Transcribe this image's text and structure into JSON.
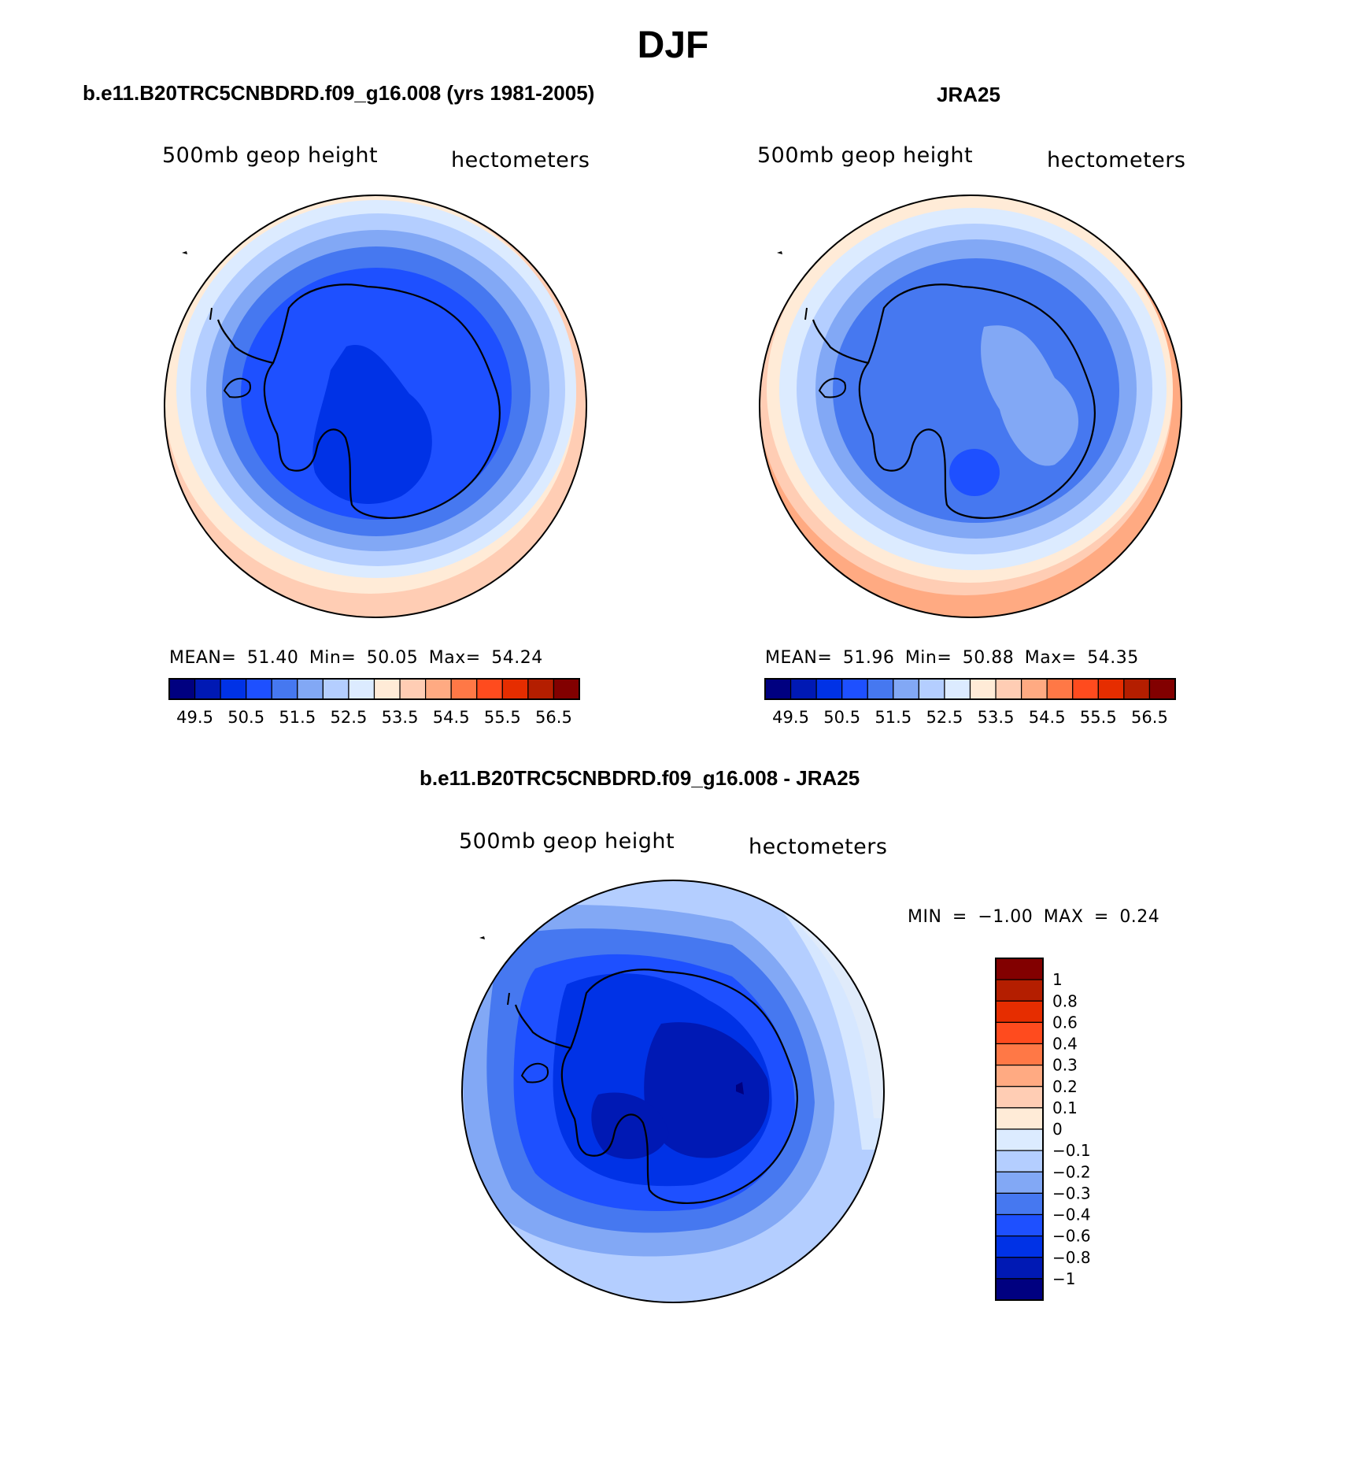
{
  "title": "DJF",
  "panels": [
    {
      "title": "b.e11.B20TRC5CNBDRD.f09_g16.008 (yrs 1981-2005)",
      "left_label": "500mb geop height",
      "right_label": "hectometers",
      "stats": {
        "mean_label": "MEAN=",
        "mean": "51.40",
        "min_label": "Min=",
        "min": "50.05",
        "max_label": "Max=",
        "max": "54.24"
      },
      "fill_levels": [
        54.0,
        53.5,
        53.0,
        52.5,
        52.0,
        51.5,
        51.0,
        50.5
      ]
    },
    {
      "title": "JRA25",
      "left_label": "500mb geop height",
      "right_label": "hectometers",
      "stats": {
        "mean_label": "MEAN=",
        "mean": "51.96",
        "min_label": "Min=",
        "min": "50.88",
        "max_label": "Max=",
        "max": "54.35"
      },
      "fill_levels": [
        54.0,
        53.5,
        53.0,
        52.5,
        52.0,
        51.5,
        51.0
      ]
    },
    {
      "title": "b.e11.B20TRC5CNBDRD.f09_g16.008 - JRA25",
      "left_label": "500mb geop height",
      "right_label": "hectometers",
      "stats": {
        "min_label": "MIN =",
        "min": "−1.00",
        "max_label": "MAX =",
        "max": "0.24"
      }
    }
  ],
  "colorbar_abs": {
    "colors": [
      "#000080",
      "#0019b4",
      "#0032e6",
      "#1e50ff",
      "#4678f0",
      "#82a8f5",
      "#b4ceff",
      "#dcebff",
      "#ffebd7",
      "#ffcdb4",
      "#ffaa82",
      "#ff7846",
      "#ff4b1e",
      "#e62d00",
      "#b41e00",
      "#820000"
    ],
    "labels": [
      "49.5",
      "50.5",
      "51.5",
      "52.5",
      "53.5",
      "54.5",
      "55.5",
      "56.5"
    ]
  },
  "colorbar_diff": {
    "colors_top_to_bottom": [
      "#820000",
      "#b41e00",
      "#e62d00",
      "#ff4b1e",
      "#ff7846",
      "#ffaa82",
      "#ffcdb4",
      "#ffebd7",
      "#dcebff",
      "#b4ceff",
      "#82a8f5",
      "#4678f0",
      "#1e50ff",
      "#0032e6",
      "#0019b4",
      "#000080"
    ],
    "labels_top_to_bottom": [
      "1",
      "0.8",
      "0.6",
      "0.4",
      "0.3",
      "0.2",
      "0.1",
      "0",
      "−0.1",
      "−0.2",
      "−0.3",
      "−0.4",
      "−0.6",
      "−0.8",
      "−1"
    ]
  }
}
